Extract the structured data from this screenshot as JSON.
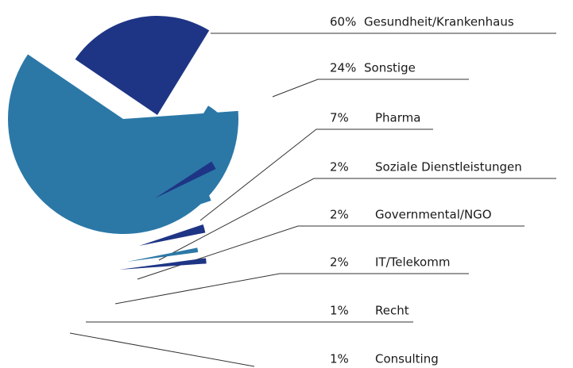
{
  "chart_data": {
    "type": "pie",
    "categories": [
      "Gesundheit/Krankenhaus",
      "Sonstige",
      "Pharma",
      "Soziale Dienstleistungen",
      "Governmental/NGO",
      "IT/Telekomm",
      "Recht",
      "Consulting"
    ],
    "values": [
      60,
      24,
      7,
      2,
      2,
      2,
      1,
      1
    ],
    "value_labels": [
      "60%",
      "24%",
      "7%",
      "2%",
      "2%",
      "2%",
      "1%",
      "1%"
    ],
    "colors": [
      "#2b78a7",
      "#1e3585",
      "#2b78a7",
      "#1e3585",
      "#2b78a7",
      "#1e3585",
      "#2b78a7",
      "#1e3585"
    ]
  }
}
